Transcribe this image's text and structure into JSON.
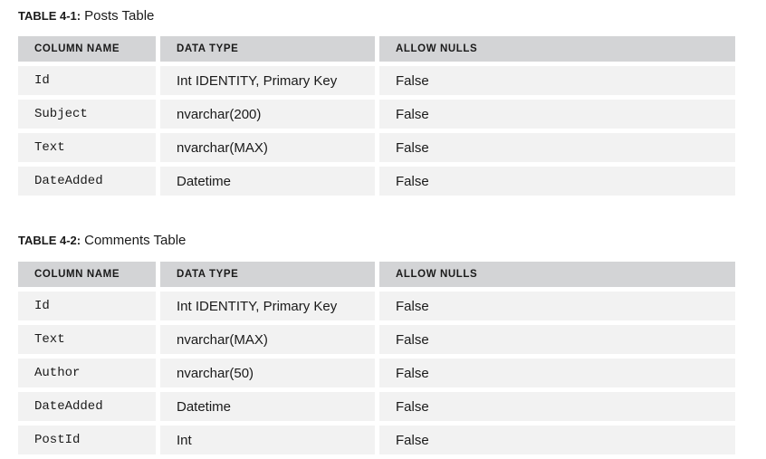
{
  "tables": [
    {
      "label": "TABLE 4-1:",
      "title": "Posts Table",
      "headers": [
        "COLUMN NAME",
        "DATA TYPE",
        "ALLOW NULLS"
      ],
      "rows": [
        [
          "Id",
          "Int IDENTITY, Primary Key",
          "False"
        ],
        [
          "Subject",
          "nvarchar(200)",
          "False"
        ],
        [
          "Text",
          "nvarchar(MAX)",
          "False"
        ],
        [
          "DateAdded",
          "Datetime",
          "False"
        ]
      ]
    },
    {
      "label": "TABLE 4-2:",
      "title": "Comments Table",
      "headers": [
        "COLUMN NAME",
        "DATA TYPE",
        "ALLOW NULLS"
      ],
      "rows": [
        [
          "Id",
          "Int IDENTITY, Primary Key",
          "False"
        ],
        [
          "Text",
          "nvarchar(MAX)",
          "False"
        ],
        [
          "Author",
          "nvarchar(50)",
          "False"
        ],
        [
          "DateAdded",
          "Datetime",
          "False"
        ],
        [
          "PostId",
          "Int",
          "False"
        ]
      ]
    }
  ]
}
